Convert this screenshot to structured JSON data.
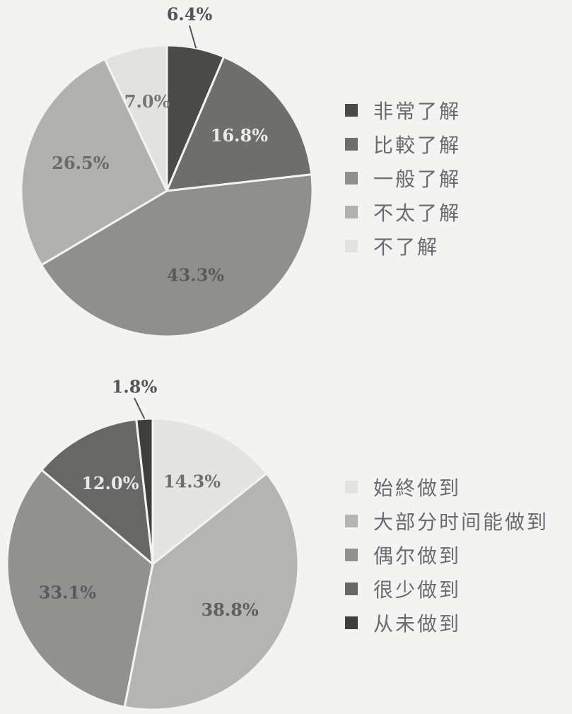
{
  "chart_data": [
    {
      "type": "pie",
      "title": "",
      "categories": [
        "非常了解",
        "比較了解",
        "一般了解",
        "不太了解",
        "不了解"
      ],
      "values": [
        6.4,
        16.8,
        43.3,
        26.5,
        7.0
      ],
      "value_labels": [
        "6.4%",
        "16.8%",
        "43.3%",
        "26.5%",
        "7.0%"
      ],
      "colors": [
        "#4a4a48",
        "#6e6e6b",
        "#8f8f8c",
        "#b1b1ae",
        "#e2e2df"
      ],
      "label_colors": [
        "#555555",
        "#ececec",
        "#5a5a5a",
        "#6a6a6a",
        "#777777"
      ],
      "legend_position": "right",
      "start": "top",
      "direction": "clockwise"
    },
    {
      "type": "pie",
      "title": "",
      "categories": [
        "始終做到",
        "大部分时间能做到",
        "偶尔做到",
        "很少做到",
        "从未做到"
      ],
      "values": [
        14.3,
        38.8,
        33.1,
        12.0,
        1.8
      ],
      "value_labels": [
        "14.3%",
        "38.8%",
        "33.1%",
        "12.0%",
        "1.8%"
      ],
      "colors": [
        "#e4e4e1",
        "#b4b4b1",
        "#919190",
        "#676765",
        "#3e3e3c"
      ],
      "label_colors": [
        "#707070",
        "#606060",
        "#5a5a5a",
        "#e8e8e8",
        "#555555"
      ],
      "legend_position": "right",
      "start": "top",
      "direction": "clockwise"
    }
  ]
}
